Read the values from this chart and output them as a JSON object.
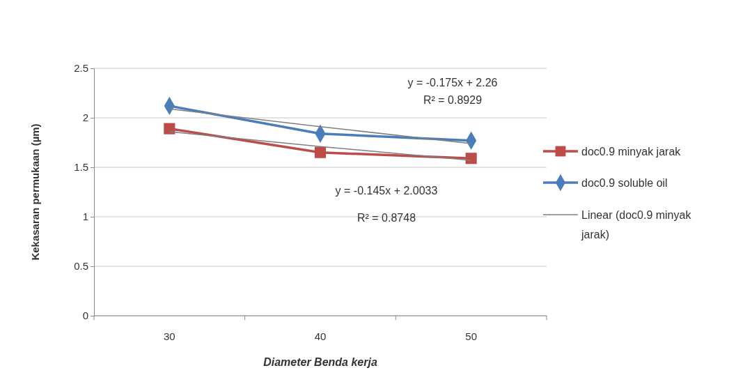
{
  "chart_data": {
    "type": "line",
    "xlabel": "Diameter Benda kerja",
    "ylabel": "Kekasaran permukaan (µm)",
    "categories": [
      "30",
      "40",
      "50"
    ],
    "series": [
      {
        "name": "doc0.9 minyak jarak",
        "color": "#be4b48",
        "values": [
          1.89,
          1.65,
          1.59
        ],
        "marker": "square"
      },
      {
        "name": "doc0.9 soluble oil",
        "color": "#4a7ebb",
        "values": [
          2.12,
          1.84,
          1.77
        ],
        "marker": "diamond"
      },
      {
        "name": "Linear (doc0.9 minyak jarak)",
        "color": "#7f7f7f",
        "values": [
          1.86,
          1.71,
          1.57
        ],
        "marker": "none"
      },
      {
        "color": "#7f7f7f",
        "values": [
          2.09,
          1.91,
          1.74
        ],
        "marker": "none"
      }
    ],
    "ylim": [
      0,
      2.5
    ],
    "yticks": [
      0,
      0.5,
      1,
      1.5,
      2,
      2.5
    ],
    "grid": "y",
    "legend": "right",
    "annotations": [
      "y = -0.175x + 2.26",
      "R² = 0.8929",
      "y = -0.145x + 2.0033",
      "R² = 0.8748"
    ]
  }
}
